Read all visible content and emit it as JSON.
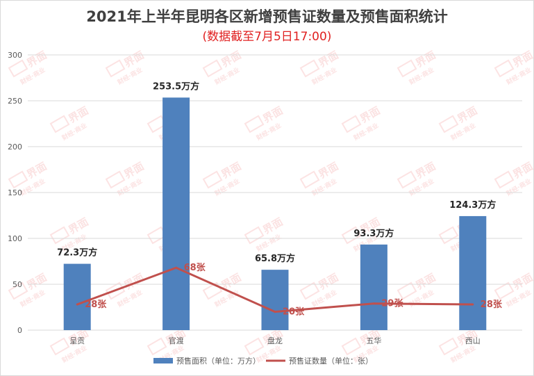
{
  "chart_data": {
    "type": "bar",
    "title": "2021年上半年昆明各区新增预售证数量及预售面积统计",
    "subtitle": "(数据截至7月5日17:00)",
    "categories": [
      "呈贡",
      "官渡",
      "盘龙",
      "五华",
      "西山"
    ],
    "ylim": [
      0,
      300
    ],
    "yticks": [
      0,
      50,
      100,
      150,
      200,
      250,
      300
    ],
    "grid": true,
    "legend_position": "bottom",
    "series": [
      {
        "name": "预售面积（单位：万方）",
        "type": "bar",
        "color": "#4f81bd",
        "values": [
          72.3,
          253.5,
          65.8,
          93.3,
          124.3
        ],
        "labels": [
          "72.3万方",
          "253.5万方",
          "65.8万方",
          "93.3万方",
          "124.3万方"
        ]
      },
      {
        "name": "预售证数量（单位：张）",
        "type": "line",
        "color": "#c0504d",
        "values": [
          28,
          68,
          20,
          29,
          28
        ],
        "labels": [
          "28张",
          "68张",
          "20张",
          "29张",
          "28张"
        ]
      }
    ]
  },
  "watermark": {
    "brand": "界面",
    "sub": "财经·商业"
  }
}
